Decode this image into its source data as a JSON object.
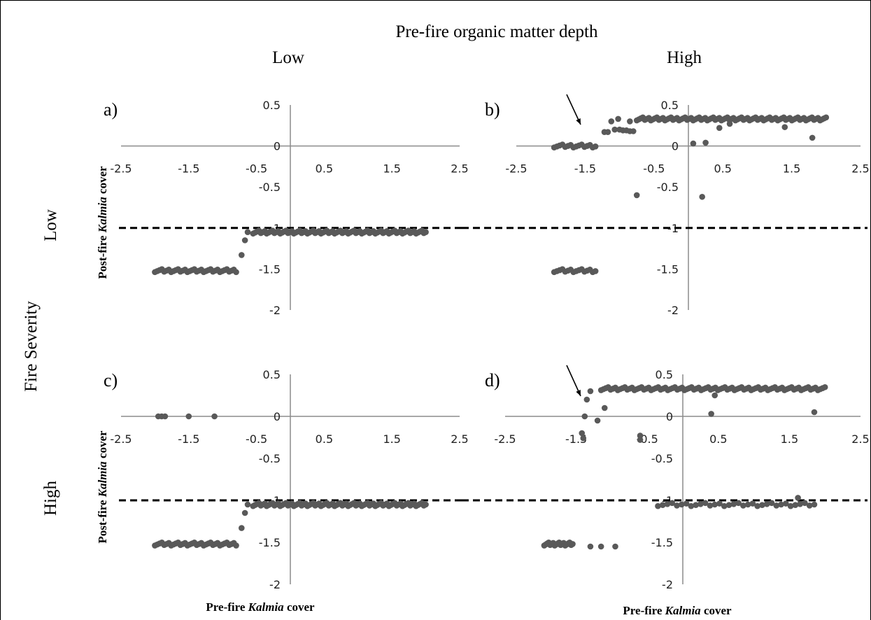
{
  "header": {
    "column_title": "Pre-fire organic matter depth",
    "col_low": "Low",
    "col_high": "High",
    "row_title": "Fire Severity",
    "row_low": "Low",
    "row_high": "High"
  },
  "axis_labels": {
    "y_prefix": "Post-fire ",
    "y_italic": "Kalmia",
    "y_suffix": " cover",
    "x_prefix": "Pre-fire ",
    "x_italic": "Kalmia",
    "x_suffix": " cover"
  },
  "colors": {
    "points": "#595959",
    "axis": "#8c8c8c",
    "threshold": "#000000"
  },
  "chart_data": [
    {
      "panel": "a)",
      "type": "scatter",
      "xlim": [
        -2.5,
        2.5
      ],
      "ylim": [
        -2,
        0.5
      ],
      "xticks": [
        "-2.5",
        "-1.5",
        "-0.5",
        "0.5",
        "1.5",
        "2.5"
      ],
      "yticks": [
        "0.5",
        "0",
        "-0.5",
        "-1",
        "-1.5",
        "-2"
      ],
      "threshold_y": -1,
      "clusters": [
        {
          "x_from": -2.0,
          "x_to": -0.8,
          "y": -1.52,
          "count": 36
        },
        {
          "x_from": -0.55,
          "x_to": 2.0,
          "y": -1.05,
          "count": 90
        }
      ],
      "points": [
        [
          -0.72,
          -1.33
        ],
        [
          -0.67,
          -1.15
        ],
        [
          -0.63,
          -1.05
        ]
      ]
    },
    {
      "panel": "b)",
      "type": "scatter",
      "xlim": [
        -2.5,
        2.5
      ],
      "ylim": [
        -2,
        0.5
      ],
      "xticks": [
        "-2.5",
        "-1.5",
        "-0.5",
        "0.5",
        "1.5",
        "2.5"
      ],
      "yticks": [
        "0.5",
        "0",
        "-0.5",
        "-1",
        "-1.5",
        "-2"
      ],
      "threshold_y": -1,
      "arrow": true,
      "clusters": [
        {
          "x_from": -1.95,
          "x_to": -1.35,
          "y": 0.0,
          "count": 16
        },
        {
          "x_from": -1.95,
          "x_to": -1.35,
          "y": -1.52,
          "count": 16
        },
        {
          "x_from": -0.75,
          "x_to": 2.0,
          "y": 0.33,
          "count": 95
        }
      ],
      "points": [
        [
          -1.22,
          0.17
        ],
        [
          -1.17,
          0.17
        ],
        [
          -1.12,
          0.3
        ],
        [
          -1.07,
          0.2
        ],
        [
          -1.02,
          0.33
        ],
        [
          -1.0,
          0.2
        ],
        [
          -0.95,
          0.19
        ],
        [
          -0.9,
          0.19
        ],
        [
          -0.85,
          0.18
        ],
        [
          -0.8,
          0.18
        ],
        [
          -0.85,
          0.3
        ],
        [
          -0.75,
          -0.6
        ],
        [
          0.07,
          0.03
        ],
        [
          0.2,
          -0.62
        ],
        [
          0.25,
          0.04
        ],
        [
          0.45,
          0.22
        ],
        [
          0.6,
          0.27
        ],
        [
          1.4,
          0.23
        ],
        [
          1.8,
          0.1
        ]
      ]
    },
    {
      "panel": "c)",
      "type": "scatter",
      "xlim": [
        -2.5,
        2.5
      ],
      "ylim": [
        -2,
        0.5
      ],
      "xticks": [
        "-2.5",
        "-1.5",
        "-0.5",
        "0.5",
        "1.5",
        "2.5"
      ],
      "yticks": [
        "0.5",
        "0",
        "-0.5",
        "-1",
        "-1.5",
        "-2"
      ],
      "threshold_y": -1,
      "clusters": [
        {
          "x_from": -2.0,
          "x_to": -0.8,
          "y": -1.52,
          "count": 36
        },
        {
          "x_from": -0.55,
          "x_to": 2.0,
          "y": -1.05,
          "count": 90
        }
      ],
      "points": [
        [
          -1.95,
          0.0
        ],
        [
          -1.9,
          0.0
        ],
        [
          -1.85,
          0.0
        ],
        [
          -1.5,
          0.0
        ],
        [
          -1.12,
          0.0
        ],
        [
          -0.72,
          -1.33
        ],
        [
          -0.67,
          -1.15
        ],
        [
          -0.63,
          -1.05
        ]
      ]
    },
    {
      "panel": "d)",
      "type": "scatter",
      "xlim": [
        -2.5,
        2.5
      ],
      "ylim": [
        -2,
        0.5
      ],
      "xticks": [
        "-2.5",
        "-1.5",
        "-0.5",
        "0.5",
        "1.5",
        "2.5"
      ],
      "yticks": [
        "0.5",
        "0",
        "-0.5",
        "-1",
        "-1.5",
        "-2"
      ],
      "threshold_y": -1,
      "arrow": true,
      "clusters": [
        {
          "x_from": -1.95,
          "x_to": -1.55,
          "y": -1.52,
          "count": 20
        },
        {
          "x_from": -1.15,
          "x_to": 2.0,
          "y": 0.33,
          "count": 95
        },
        {
          "x_from": -0.35,
          "x_to": 1.85,
          "y": -1.05,
          "count": 34
        }
      ],
      "points": [
        [
          -1.42,
          -0.2
        ],
        [
          -1.4,
          -0.26
        ],
        [
          -1.38,
          0.0
        ],
        [
          -1.35,
          0.2
        ],
        [
          -1.3,
          0.3
        ],
        [
          -1.2,
          -0.05
        ],
        [
          -1.1,
          0.1
        ],
        [
          -1.3,
          -1.55
        ],
        [
          -1.15,
          -1.55
        ],
        [
          -0.95,
          -1.55
        ],
        [
          -0.6,
          -0.23
        ],
        [
          -0.6,
          -0.28
        ],
        [
          0.4,
          0.03
        ],
        [
          0.45,
          0.25
        ],
        [
          1.62,
          -0.97
        ],
        [
          1.85,
          0.05
        ]
      ]
    }
  ]
}
